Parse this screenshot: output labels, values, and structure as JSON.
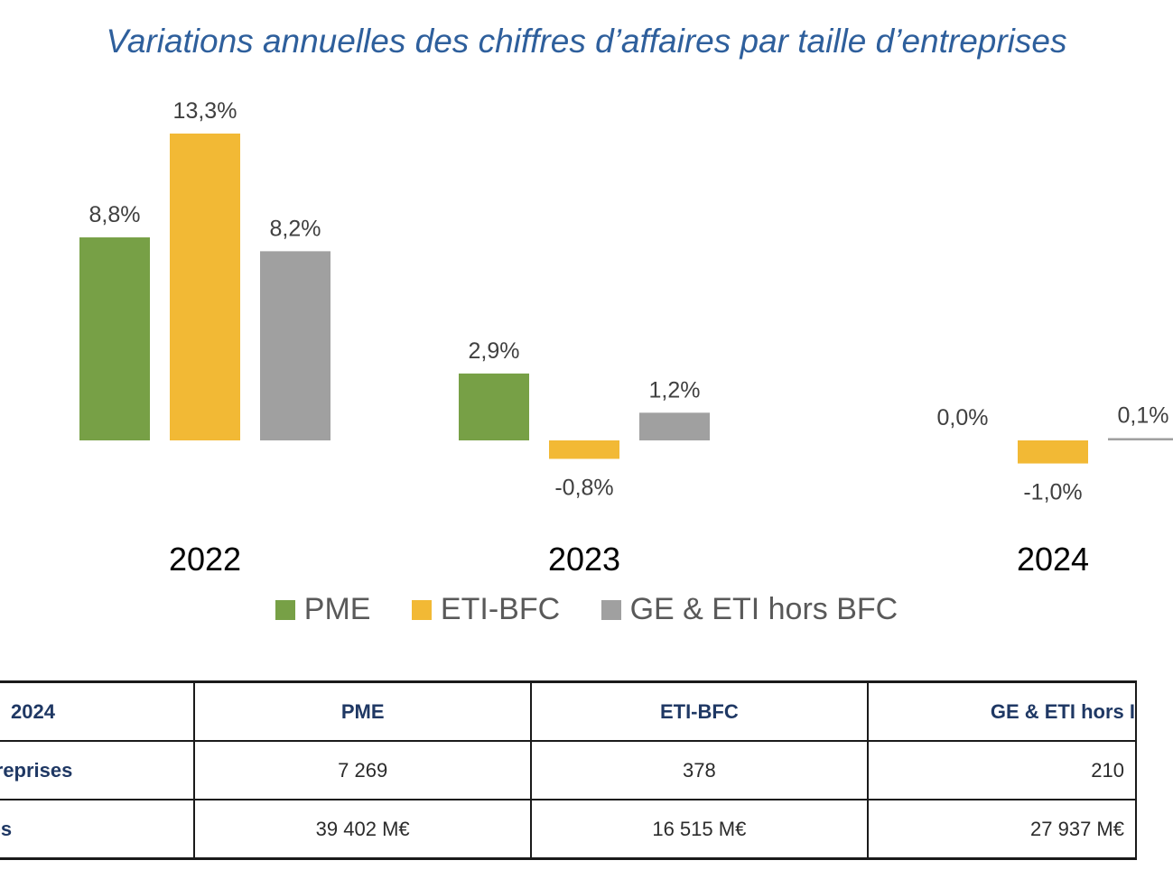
{
  "chart_data": {
    "type": "bar",
    "title": "Variations annuelles des chiffres d’affaires par taille d’entreprises",
    "categories": [
      "2022",
      "2023",
      "2024"
    ],
    "series": [
      {
        "name": "PME",
        "color": "#77a046",
        "values": [
          8.8,
          2.9,
          0.0
        ],
        "labels": [
          "8,8%",
          "2,9%",
          "0,0%"
        ]
      },
      {
        "name": "ETI-BFC",
        "color": "#f2b935",
        "values": [
          13.3,
          -0.8,
          -1.0
        ],
        "labels": [
          "13,3%",
          "-0,8%",
          "-1,0%"
        ]
      },
      {
        "name": "GE & ETI hors BFC",
        "color": "#a0a0a0",
        "values": [
          8.2,
          1.2,
          0.1
        ],
        "labels": [
          "8,2%",
          "1,2%",
          "0,1%"
        ]
      }
    ],
    "legend_position": "bottom",
    "grid": false
  },
  "table": {
    "header": [
      "2024",
      "PME",
      "ETI-BFC",
      "GE & ETI hors I"
    ],
    "rows": [
      {
        "label": "ntreprises",
        "cells": [
          "7 269",
          "378",
          "210"
        ]
      },
      {
        "label": "ires",
        "cells": [
          "39 402 M€",
          "16 515 M€",
          "27 937 M€"
        ]
      }
    ]
  }
}
